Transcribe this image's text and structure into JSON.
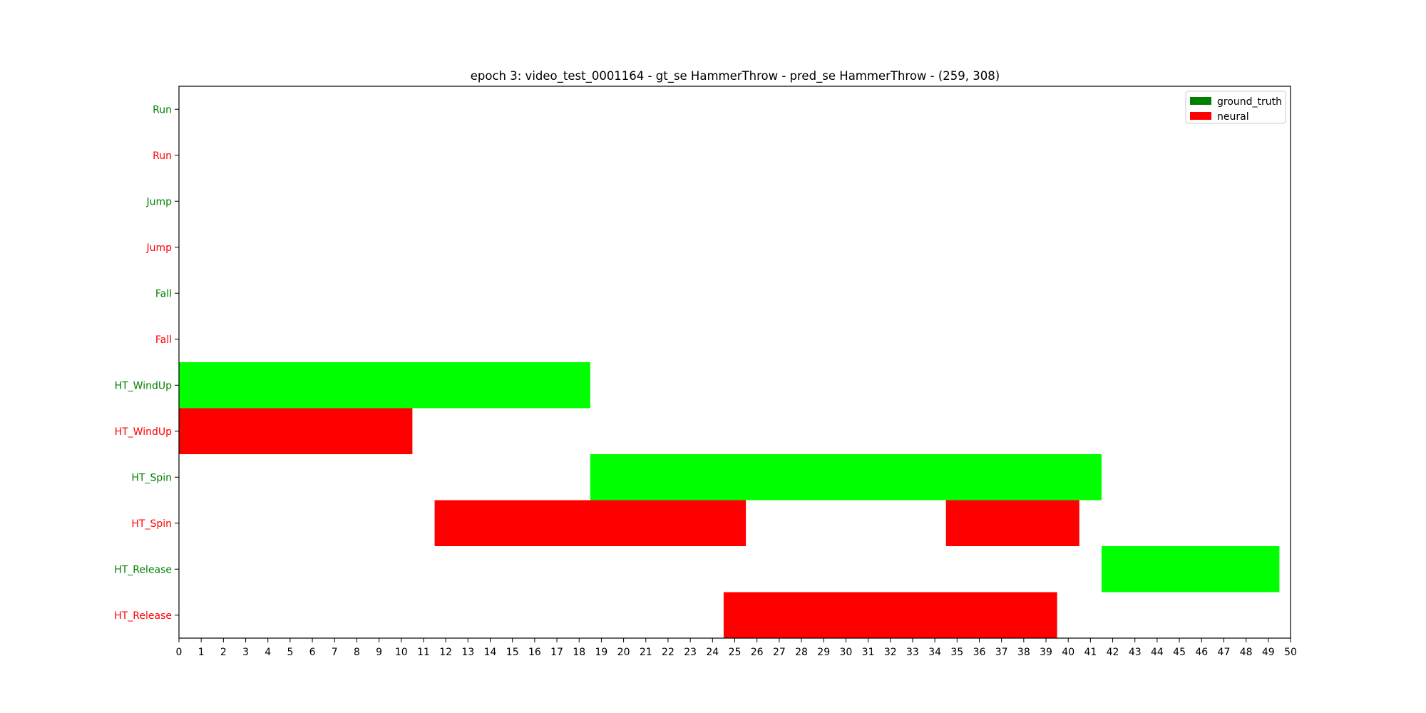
{
  "chart_data": {
    "type": "bar",
    "orientation": "horizontal-timeline",
    "title": "epoch 3: video_test_0001164 - gt_se HammerThrow - pred_se HammerThrow - (259, 308)",
    "xlabel": "",
    "ylabel": "",
    "xlim": [
      0,
      50
    ],
    "x_ticks": [
      0,
      1,
      2,
      3,
      4,
      5,
      6,
      7,
      8,
      9,
      10,
      11,
      12,
      13,
      14,
      15,
      16,
      17,
      18,
      19,
      20,
      21,
      22,
      23,
      24,
      25,
      26,
      27,
      28,
      29,
      30,
      31,
      32,
      33,
      34,
      35,
      36,
      37,
      38,
      39,
      40,
      41,
      42,
      43,
      44,
      45,
      46,
      47,
      48,
      49,
      50
    ],
    "grid": false,
    "legend_position": "top-right",
    "colors": {
      "ground_truth_label": "#008000",
      "ground_truth_bar": "#00ff00",
      "neural_label": "#ff0000",
      "neural_bar": "#ff0000"
    },
    "legend": [
      {
        "label": "ground_truth",
        "color": "#008000"
      },
      {
        "label": "neural",
        "color": "#ff0000"
      }
    ],
    "rows": [
      {
        "label": "Run",
        "series": "ground_truth",
        "segments": []
      },
      {
        "label": "Run",
        "series": "neural",
        "segments": []
      },
      {
        "label": "Jump",
        "series": "ground_truth",
        "segments": []
      },
      {
        "label": "Jump",
        "series": "neural",
        "segments": []
      },
      {
        "label": "Fall",
        "series": "ground_truth",
        "segments": []
      },
      {
        "label": "Fall",
        "series": "neural",
        "segments": []
      },
      {
        "label": "HT_WindUp",
        "series": "ground_truth",
        "segments": [
          [
            0,
            18.5
          ]
        ]
      },
      {
        "label": "HT_WindUp",
        "series": "neural",
        "segments": [
          [
            0,
            10.5
          ]
        ]
      },
      {
        "label": "HT_Spin",
        "series": "ground_truth",
        "segments": [
          [
            18.5,
            41.5
          ]
        ]
      },
      {
        "label": "HT_Spin",
        "series": "neural",
        "segments": [
          [
            11.5,
            25.5
          ],
          [
            34.5,
            40.5
          ]
        ]
      },
      {
        "label": "HT_Release",
        "series": "ground_truth",
        "segments": [
          [
            41.5,
            49.5
          ]
        ]
      },
      {
        "label": "HT_Release",
        "series": "neural",
        "segments": [
          [
            24.5,
            39.5
          ]
        ]
      }
    ]
  }
}
